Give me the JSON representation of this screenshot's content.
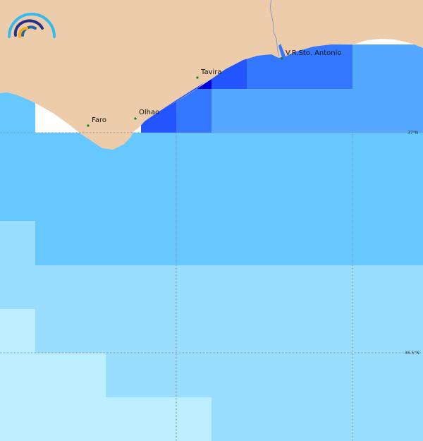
{
  "map": {
    "towns": [
      {
        "name": "Faro"
      },
      {
        "name": "Olhao"
      },
      {
        "name": "Tavira"
      },
      {
        "name": "V.R.Sto. Antonio"
      }
    ],
    "latitude_labels": [
      "37°N",
      "36.5°N"
    ],
    "colors": {
      "land": "#ecccaa",
      "level1": "#0000dd",
      "level2": "#2255ff",
      "level3": "#3377ff",
      "level4": "#55a8ff",
      "level5": "#66c8ff",
      "level6": "#99ddff",
      "level7": "#bbeeff",
      "town_marker": "#118811",
      "gridline": "#888888"
    },
    "logo": {
      "icon": "rainbow-arcs-logo"
    }
  }
}
